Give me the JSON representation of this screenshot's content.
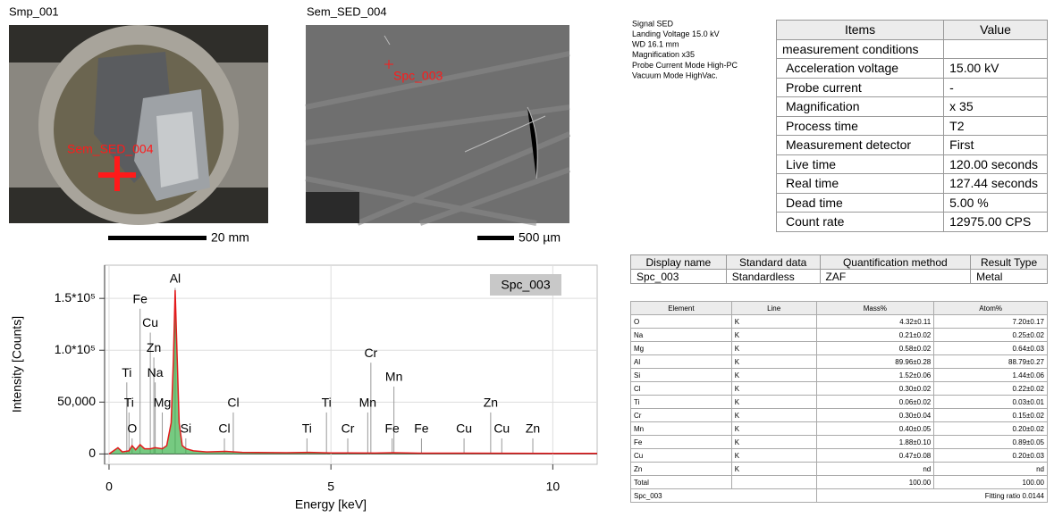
{
  "images": [
    {
      "title": "Smp_001",
      "overlay": "Sem_SED_004",
      "scale": "20 mm"
    },
    {
      "title": "Sem_SED_004",
      "overlay": "Spc_003",
      "scale": "500 µm"
    }
  ],
  "conditions": [
    "Signal SED",
    "Landing Voltage 15.0 kV",
    "WD 16.1 mm",
    "Magnification x35",
    "Probe Current Mode High-PC",
    "Vacuum Mode HighVac."
  ],
  "items_table": {
    "header": [
      "Items",
      "Value"
    ],
    "rows": [
      [
        "measurement conditions",
        null
      ],
      [
        "Acceleration voltage",
        "15.00 kV"
      ],
      [
        "Probe current",
        "-"
      ],
      [
        "Magnification",
        "x 35"
      ],
      [
        "Process time",
        "T2"
      ],
      [
        "Measurement detector",
        "First"
      ],
      [
        "Live time",
        "120.00 seconds"
      ],
      [
        "Real time",
        "127.44 seconds"
      ],
      [
        "Dead time",
        "5.00 %"
      ],
      [
        "Count rate",
        "12975.00 CPS"
      ]
    ]
  },
  "summary_table": {
    "header": [
      "Display name",
      "Standard data",
      "Quantification method",
      "Result Type"
    ],
    "rows": [
      [
        "Spc_003",
        "Standardless",
        "ZAF",
        "Metal"
      ]
    ]
  },
  "element_table": {
    "header": [
      "Element",
      "Line",
      "Mass%",
      "Atom%"
    ],
    "rows": [
      [
        "O",
        "K",
        "4.32±0.11",
        "7.20±0.17"
      ],
      [
        "Na",
        "K",
        "0.21±0.02",
        "0.25±0.02"
      ],
      [
        "Mg",
        "K",
        "0.58±0.02",
        "0.64±0.03"
      ],
      [
        "Al",
        "K",
        "89.96±0.28",
        "88.79±0.27"
      ],
      [
        "Si",
        "K",
        "1.52±0.06",
        "1.44±0.06"
      ],
      [
        "Cl",
        "K",
        "0.30±0.02",
        "0.22±0.02"
      ],
      [
        "Ti",
        "K",
        "0.06±0.02",
        "0.03±0.01"
      ],
      [
        "Cr",
        "K",
        "0.30±0.04",
        "0.15±0.02"
      ],
      [
        "Mn",
        "K",
        "0.40±0.05",
        "0.20±0.02"
      ],
      [
        "Fe",
        "K",
        "1.88±0.10",
        "0.89±0.05"
      ],
      [
        "Cu",
        "K",
        "0.47±0.08",
        "0.20±0.03"
      ],
      [
        "Zn",
        "K",
        "nd",
        "nd"
      ],
      [
        "Total",
        null,
        "100.00",
        "100.00"
      ]
    ],
    "footer": [
      "Spc_003",
      "Fitting ratio 0.0144"
    ]
  },
  "chart_data": {
    "type": "line",
    "x_label": "Energy [keV]",
    "y_label": "Intensity [Counts]",
    "x": [
      0.0,
      0.2,
      0.3,
      0.45,
      0.52,
      0.6,
      0.7,
      0.8,
      0.93,
      1.04,
      1.2,
      1.3,
      1.4,
      1.45,
      1.49,
      1.53,
      1.58,
      1.65,
      1.74,
      1.9,
      2.2,
      2.62,
      3.0,
      4.0,
      4.51,
      5.0,
      5.41,
      6.0,
      6.4,
      7.0,
      8.0,
      9.0,
      10.0,
      11.0
    ],
    "series": [
      {
        "name": "Spc_003",
        "color": "#e31a1c",
        "fill": "#3cb44b",
        "values": [
          0,
          6000,
          2000,
          3000,
          8000,
          4000,
          9000,
          5000,
          5000,
          6000,
          5000,
          8000,
          30000,
          90000,
          158000,
          100000,
          30000,
          8000,
          5000,
          3000,
          2000,
          2500,
          1500,
          1200,
          1500,
          1000,
          1000,
          900,
          1200,
          800,
          800,
          700,
          600,
          500
        ]
      }
    ],
    "xlim": [
      -0.1,
      11
    ],
    "ylim": [
      -10000,
      182000
    ],
    "xticks": [
      0,
      5,
      10
    ],
    "yticks": [
      0,
      {
        "value": 50000,
        "label": "50,000"
      },
      {
        "value": 100000,
        "label": "1.0*10⁵"
      },
      {
        "value": 150000,
        "label": "1.5*10⁵"
      }
    ],
    "grid": true,
    "annotations": [
      {
        "text": "Al",
        "x": 1.49,
        "y": 160000
      },
      {
        "text": "Fe",
        "x": 0.7,
        "y": 140000
      },
      {
        "text": "Cu",
        "x": 0.93,
        "y": 117000
      },
      {
        "text": "Zn",
        "x": 1.01,
        "y": 93000
      },
      {
        "text": "Na",
        "x": 1.04,
        "y": 69000
      },
      {
        "text": "Ti",
        "x": 0.4,
        "y": 69000
      },
      {
        "text": "Ti",
        "x": 0.45,
        "y": 40000
      },
      {
        "text": "Mg",
        "x": 1.2,
        "y": 40000
      },
      {
        "text": "O",
        "x": 0.52,
        "y": 15000
      },
      {
        "text": "Si",
        "x": 1.73,
        "y": 15000
      },
      {
        "text": "Cl",
        "x": 2.6,
        "y": 15000
      },
      {
        "text": "Cl",
        "x": 2.8,
        "y": 40000
      },
      {
        "text": "Ti",
        "x": 4.46,
        "y": 15000
      },
      {
        "text": "Ti",
        "x": 4.9,
        "y": 40000
      },
      {
        "text": "Cr",
        "x": 5.38,
        "y": 15000
      },
      {
        "text": "Cr",
        "x": 5.9,
        "y": 88000
      },
      {
        "text": "Mn",
        "x": 5.83,
        "y": 40000
      },
      {
        "text": "Mn",
        "x": 6.42,
        "y": 65000
      },
      {
        "text": "Fe",
        "x": 6.38,
        "y": 15000
      },
      {
        "text": "Fe",
        "x": 7.04,
        "y": 15000
      },
      {
        "text": "Cu",
        "x": 8.0,
        "y": 15000
      },
      {
        "text": "Zn",
        "x": 8.6,
        "y": 40000
      },
      {
        "text": "Cu",
        "x": 8.85,
        "y": 15000
      },
      {
        "text": "Zn",
        "x": 9.55,
        "y": 15000
      }
    ]
  }
}
